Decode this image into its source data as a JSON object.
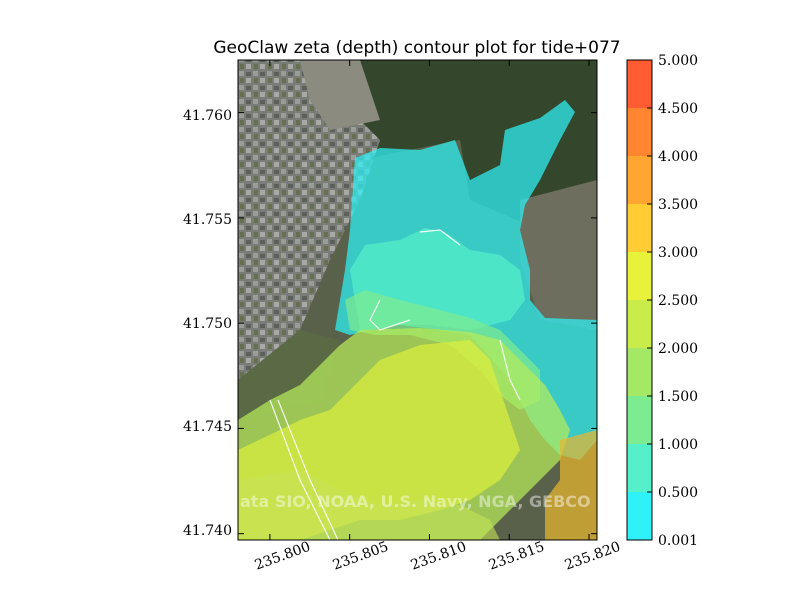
{
  "chart_data": {
    "type": "heatmap",
    "title": "GeoClaw zeta (depth) contour plot for tide+077",
    "xlabel": "",
    "ylabel": "",
    "x_ticks": [
      "235.800",
      "235.805",
      "235.810",
      "235.815",
      "235.820"
    ],
    "x_tick_values": [
      235.8,
      235.805,
      235.81,
      235.815,
      235.82
    ],
    "xlim": [
      235.798,
      235.8205
    ],
    "y_ticks": [
      "41.740",
      "41.745",
      "41.750",
      "41.755",
      "41.760"
    ],
    "y_tick_values": [
      41.74,
      41.745,
      41.75,
      41.755,
      41.76
    ],
    "ylim": [
      41.7397,
      41.7625
    ],
    "colorbar": {
      "levels": [
        "0.001",
        "0.500",
        "1.000",
        "1.500",
        "2.000",
        "2.500",
        "3.000",
        "3.500",
        "4.000",
        "4.500",
        "5.000"
      ],
      "level_values": [
        0.001,
        0.5,
        1.0,
        1.5,
        2.0,
        2.5,
        3.0,
        3.5,
        4.0,
        4.5,
        5.0
      ],
      "colors": [
        "#2ef2f7",
        "#55f0c9",
        "#7deb8f",
        "#a4e865",
        "#caec4a",
        "#e8f23a",
        "#ffcc33",
        "#ffa632",
        "#ff8530",
        "#ff5c34",
        "#ff3030"
      ]
    },
    "background_image": "satellite-basemap",
    "watermark": "ata SIO, NOAA, U.S. Navy, NGA, GEBCO",
    "grid": false,
    "legend": "colorbar-right"
  }
}
